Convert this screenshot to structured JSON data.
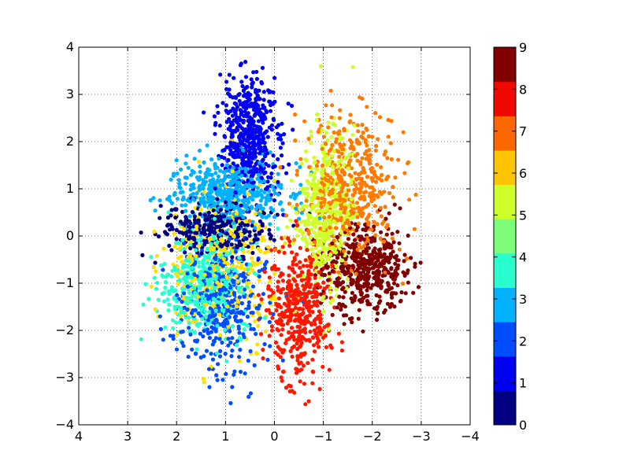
{
  "chart_data": {
    "type": "scatter",
    "title": "",
    "xlabel": "",
    "ylabel": "",
    "xlim": [
      4,
      -4
    ],
    "ylim": [
      -4,
      4
    ],
    "x_axis_inverted": true,
    "xticks": [
      4,
      3,
      2,
      1,
      0,
      -1,
      -2,
      -3,
      -4
    ],
    "yticks": [
      -4,
      -3,
      -2,
      -1,
      0,
      1,
      2,
      3,
      4
    ],
    "xtick_labels": [
      "4",
      "3",
      "2",
      "1",
      "0",
      "−1",
      "−2",
      "−3",
      "−4"
    ],
    "ytick_labels": [
      "−4",
      "−3",
      "−2",
      "−1",
      "0",
      "1",
      "2",
      "3",
      "4"
    ],
    "grid": true,
    "colormap": "jet",
    "colorbar": {
      "min": 0,
      "max": 9,
      "tick_labels": [
        "0",
        "1",
        "2",
        "3",
        "4",
        "5",
        "6",
        "7",
        "8",
        "9"
      ],
      "colors": [
        "#000080",
        "#0000f1",
        "#004dff",
        "#00b1ff",
        "#29ffce",
        "#7dff7a",
        "#ceff29",
        "#ffc400",
        "#ff6800",
        "#f10800",
        "#800000"
      ]
    },
    "series": [
      {
        "class": 0,
        "color": "#000080",
        "cx": 1.2,
        "cy": 0.15,
        "sx": 0.55,
        "sy": 0.28,
        "n": 320
      },
      {
        "class": 1,
        "color": "#0000f1",
        "cx": 0.5,
        "cy": 2.1,
        "sx": 0.3,
        "sy": 0.65,
        "n": 520
      },
      {
        "class": 2,
        "color": "#004dff",
        "cx": 1.1,
        "cy": -1.5,
        "sx": 0.45,
        "sy": 0.65,
        "n": 380
      },
      {
        "class": 3,
        "color": "#00b1ff",
        "cx": 0.9,
        "cy": 0.9,
        "sx": 0.55,
        "sy": 0.35,
        "n": 470
      },
      {
        "class": 4,
        "color": "#29ffce",
        "cx": 1.45,
        "cy": -1.0,
        "sx": 0.45,
        "sy": 0.55,
        "n": 400
      },
      {
        "class": 5,
        "color": "#ceff29",
        "cx": -1.05,
        "cy": 0.55,
        "sx": 0.28,
        "sy": 0.85,
        "n": 450
      },
      {
        "class": 6,
        "color": "#ffe000",
        "cx": 1.1,
        "cy": -0.6,
        "sx": 0.55,
        "sy": 0.8,
        "n": 330
      },
      {
        "class": 7,
        "color": "#ff7a00",
        "cx": -1.55,
        "cy": 1.0,
        "sx": 0.48,
        "sy": 0.75,
        "n": 470
      },
      {
        "class": 8,
        "color": "#ff1800",
        "cx": -0.5,
        "cy": -1.6,
        "sx": 0.32,
        "sy": 0.7,
        "n": 420
      },
      {
        "class": 9,
        "color": "#800000",
        "cx": -1.9,
        "cy": -0.7,
        "sx": 0.45,
        "sy": 0.45,
        "n": 470
      }
    ]
  }
}
